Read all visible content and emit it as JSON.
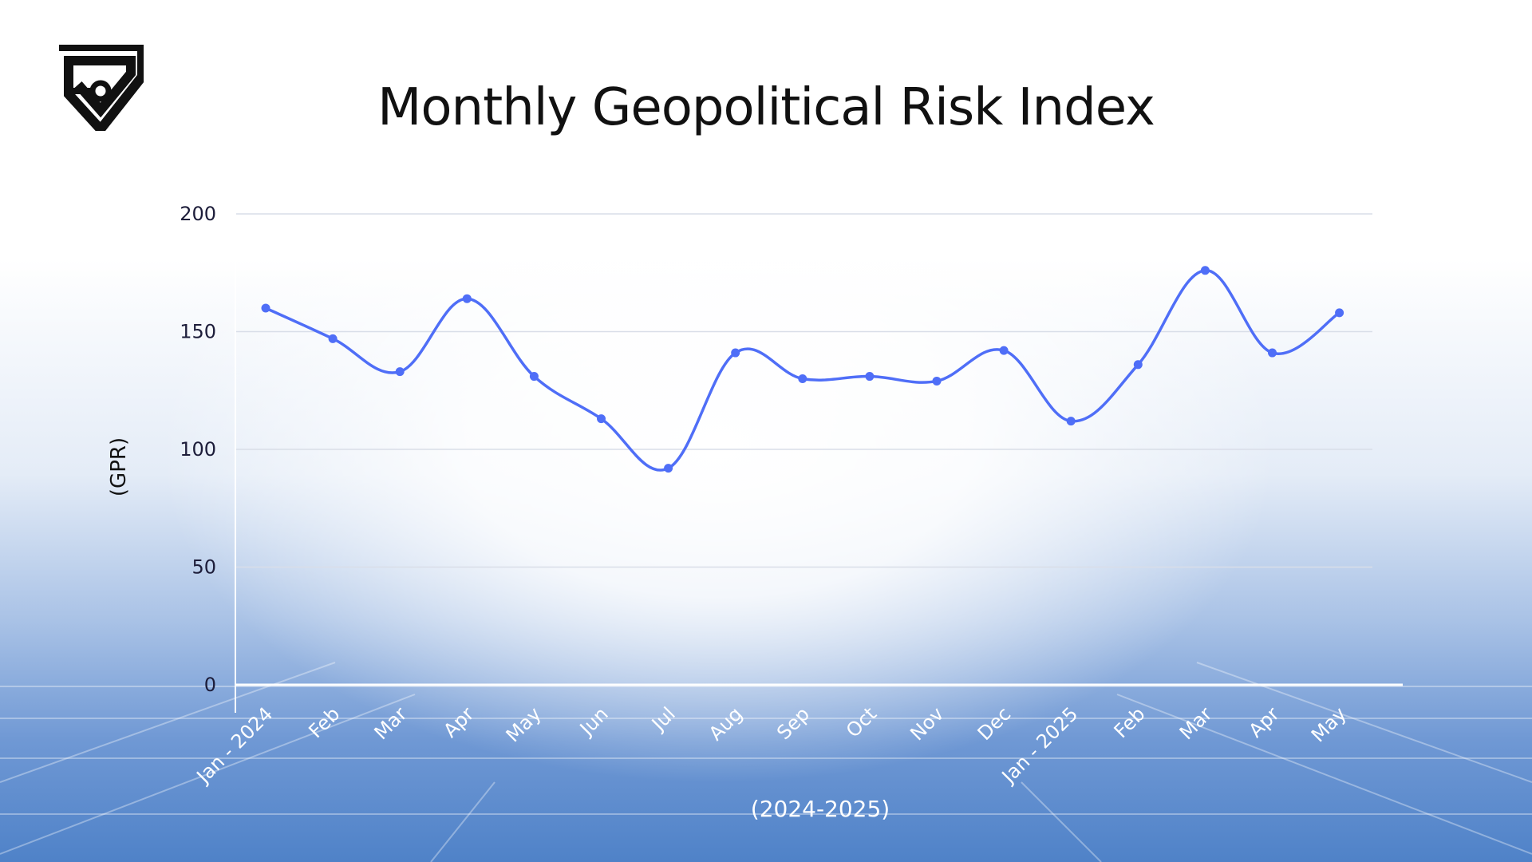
{
  "header": {
    "title": "Monthly Geopolitical Risk Index",
    "logo": "shield-5-logo"
  },
  "colors": {
    "line": "#4f6ef7",
    "grid": "#d9dee8",
    "axis": "#ffffff"
  },
  "chart_data": {
    "type": "line",
    "title": "Monthly Geopolitical Risk Index",
    "xlabel": "(2024-2025)",
    "ylabel": "(GPR)",
    "ylim": [
      0,
      200
    ],
    "yticks": [
      0,
      50,
      100,
      150,
      200
    ],
    "grid": true,
    "smooth": true,
    "markers": true,
    "categories": [
      "Jan - 2024",
      "Feb",
      "Mar",
      "Apr",
      "May",
      "Jun",
      "Jul",
      "Aug",
      "Sep",
      "Oct",
      "Nov",
      "Dec",
      "Jan - 2025",
      "Feb",
      "Mar",
      "Apr",
      "May"
    ],
    "values": [
      160,
      147,
      133,
      164,
      131,
      113,
      92,
      141,
      130,
      131,
      129,
      142,
      112,
      136,
      176,
      141,
      158
    ]
  }
}
